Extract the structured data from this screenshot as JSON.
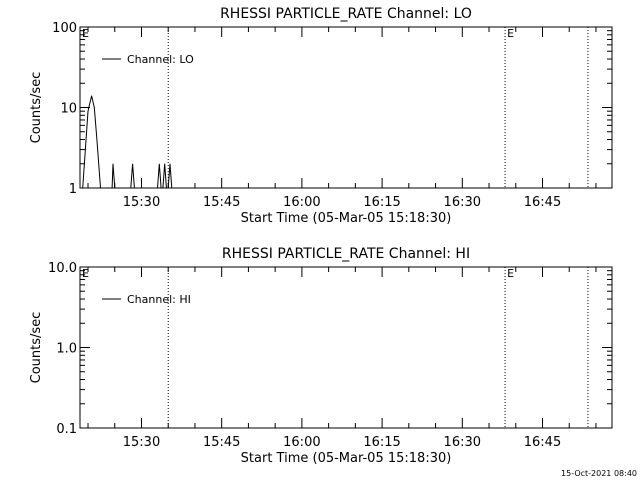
{
  "footer": {
    "timestamp": "15-Oct-2021 08:40"
  },
  "chart_data": [
    {
      "type": "line",
      "title": "RHESSI PARTICLE_RATE Channel: LO",
      "xlabel": "Start Time (05-Mar-05 15:18:30)",
      "ylabel": "Counts/sec",
      "y_scale": "log",
      "ylim": [
        1,
        100
      ],
      "yticks": [
        1,
        10,
        100
      ],
      "ytick_labels": [
        "1",
        "10",
        "100"
      ],
      "xlim": [
        "15:18:30",
        "16:58:00"
      ],
      "xticks": [
        "15:30",
        "15:45",
        "16:00",
        "16:15",
        "16:30",
        "16:45"
      ],
      "grid": false,
      "legend": {
        "position": "top-left",
        "entries": [
          "Channel: LO"
        ]
      },
      "markers": [
        {
          "time": "15:35:00",
          "label": ""
        },
        {
          "time": "16:38:00",
          "label": "E"
        },
        {
          "time": "16:53:30",
          "label": ""
        }
      ],
      "corner_label": "E",
      "series": [
        {
          "name": "Channel: LO",
          "x": [
            "15:18:30",
            "15:19:00",
            "15:20:00",
            "15:20:40",
            "15:21:10",
            "15:21:40",
            "15:22:20",
            "15:23:30",
            "15:24:30",
            "15:24:40",
            "15:25:00",
            "15:25:20",
            "15:25:40",
            "15:26:40",
            "15:28:00",
            "15:28:20",
            "15:28:40",
            "15:33:00",
            "15:33:20",
            "15:33:40",
            "15:34:00",
            "15:34:20",
            "15:34:40",
            "15:35:00",
            "15:35:20",
            "15:35:40",
            "15:36:00",
            "15:36:20",
            "15:36:40",
            "15:37:00"
          ],
          "values": [
            1,
            1,
            9,
            14,
            10,
            4,
            1,
            1,
            1,
            2,
            1,
            1,
            1,
            1,
            1,
            2,
            1,
            1,
            2,
            1,
            1,
            2,
            1,
            1,
            2,
            1,
            1,
            1,
            1,
            1
          ]
        }
      ]
    },
    {
      "type": "line",
      "title": "RHESSI PARTICLE_RATE Channel: HI",
      "xlabel": "Start Time (05-Mar-05 15:18:30)",
      "ylabel": "Counts/sec",
      "y_scale": "log",
      "ylim": [
        0.1,
        10
      ],
      "yticks": [
        0.1,
        1,
        10
      ],
      "ytick_labels": [
        "0.1",
        "1.0",
        "10.0"
      ],
      "xlim": [
        "15:18:30",
        "16:58:00"
      ],
      "xticks": [
        "15:30",
        "15:45",
        "16:00",
        "16:15",
        "16:30",
        "16:45"
      ],
      "grid": false,
      "legend": {
        "position": "top-left",
        "entries": [
          "Channel: HI"
        ]
      },
      "markers": [
        {
          "time": "15:35:00",
          "label": ""
        },
        {
          "time": "16:38:00",
          "label": "E"
        },
        {
          "time": "16:53:30",
          "label": ""
        }
      ],
      "corner_label": "E",
      "series": [
        {
          "name": "Channel: HI",
          "x": [],
          "values": []
        }
      ]
    }
  ]
}
